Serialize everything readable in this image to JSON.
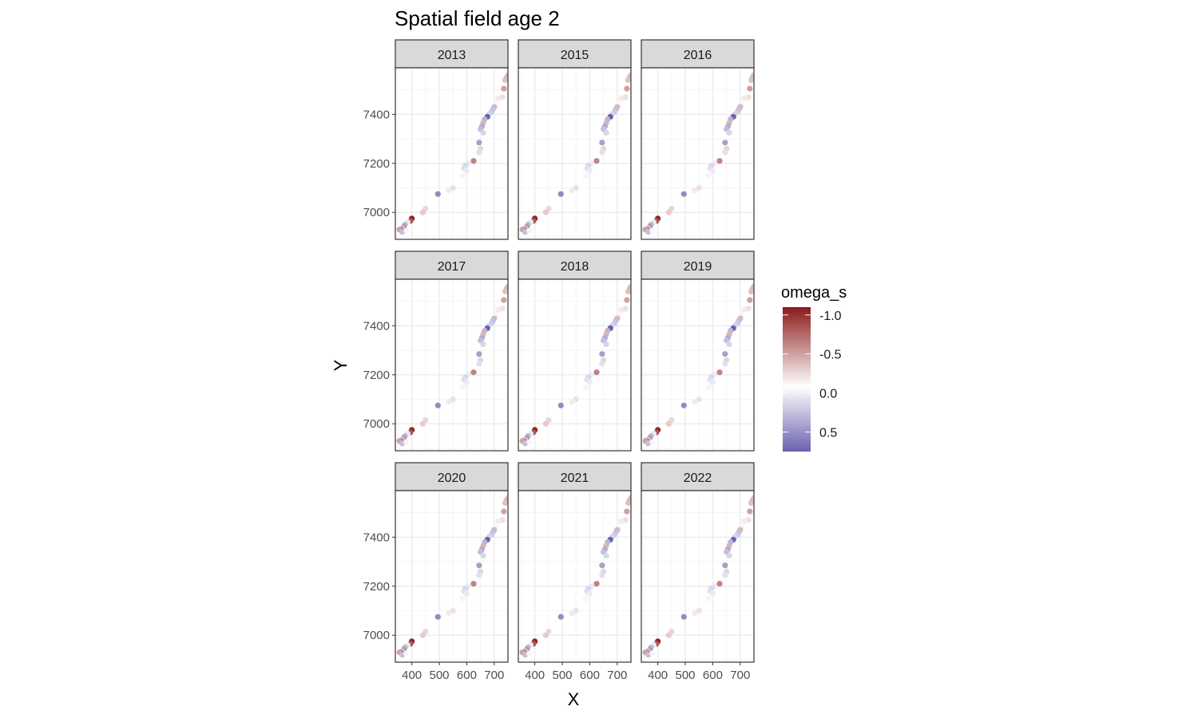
{
  "chart_data": {
    "type": "scatter",
    "title": "Spatial field age 2",
    "xlabel": "X",
    "ylabel": "Y",
    "facets": [
      "2013",
      "2015",
      "2016",
      "2017",
      "2018",
      "2019",
      "2020",
      "2021",
      "2022"
    ],
    "xlim": [
      340,
      750
    ],
    "ylim": [
      6890,
      7590
    ],
    "x_ticks": [
      400,
      500,
      600,
      700
    ],
    "y_ticks": [
      7000,
      7200,
      7400
    ],
    "grid": true,
    "legend": {
      "title": "omega_s",
      "placement": "right",
      "range": [
        -1.1,
        0.75
      ],
      "ticks": [
        -1.0,
        -0.5,
        0.0,
        0.5
      ],
      "tick_labels": [
        "-1.0",
        "-0.5",
        "0.0",
        "0.5"
      ],
      "low_color": "#8B1A1A",
      "mid_color": "#FFFFFF",
      "high_color": "#6A61AD"
    },
    "points": [
      {
        "x": 750,
        "y": 7560,
        "v": -0.3
      },
      {
        "x": 745,
        "y": 7550,
        "v": -0.35
      },
      {
        "x": 740,
        "y": 7540,
        "v": -0.3
      },
      {
        "x": 735,
        "y": 7505,
        "v": -0.45
      },
      {
        "x": 730,
        "y": 7470,
        "v": -0.15
      },
      {
        "x": 715,
        "y": 7465,
        "v": -0.1
      },
      {
        "x": 705,
        "y": 7440,
        "v": -0.05
      },
      {
        "x": 700,
        "y": 7430,
        "v": -0.35
      },
      {
        "x": 695,
        "y": 7420,
        "v": 0.3
      },
      {
        "x": 690,
        "y": 7410,
        "v": 0.25
      },
      {
        "x": 680,
        "y": 7400,
        "v": 0.2
      },
      {
        "x": 675,
        "y": 7390,
        "v": 0.75
      },
      {
        "x": 665,
        "y": 7380,
        "v": 0.35
      },
      {
        "x": 660,
        "y": 7365,
        "v": -0.35
      },
      {
        "x": 655,
        "y": 7350,
        "v": 0.4
      },
      {
        "x": 650,
        "y": 7340,
        "v": 0.3
      },
      {
        "x": 660,
        "y": 7325,
        "v": 0.2
      },
      {
        "x": 645,
        "y": 7285,
        "v": 0.45
      },
      {
        "x": 650,
        "y": 7260,
        "v": -0.2
      },
      {
        "x": 645,
        "y": 7245,
        "v": 0.15
      },
      {
        "x": 625,
        "y": 7210,
        "v": -0.6
      },
      {
        "x": 605,
        "y": 7200,
        "v": 0.1
      },
      {
        "x": 595,
        "y": 7190,
        "v": 0.2
      },
      {
        "x": 590,
        "y": 7180,
        "v": 0.15
      },
      {
        "x": 600,
        "y": 7170,
        "v": 0.1
      },
      {
        "x": 585,
        "y": 7150,
        "v": 0.05
      },
      {
        "x": 550,
        "y": 7100,
        "v": -0.15
      },
      {
        "x": 535,
        "y": 7090,
        "v": -0.1
      },
      {
        "x": 495,
        "y": 7075,
        "v": 0.55
      },
      {
        "x": 450,
        "y": 7015,
        "v": -0.2
      },
      {
        "x": 440,
        "y": 7000,
        "v": -0.25
      },
      {
        "x": 400,
        "y": 6975,
        "v": -1.05
      },
      {
        "x": 395,
        "y": 6965,
        "v": -0.8
      },
      {
        "x": 385,
        "y": 6960,
        "v": 0.1
      },
      {
        "x": 375,
        "y": 6950,
        "v": 0.35
      },
      {
        "x": 370,
        "y": 6940,
        "v": -0.55
      },
      {
        "x": 365,
        "y": 6935,
        "v": 0.25
      },
      {
        "x": 360,
        "y": 6930,
        "v": -0.65
      },
      {
        "x": 355,
        "y": 6930,
        "v": -0.45
      },
      {
        "x": 365,
        "y": 6920,
        "v": 0.3
      },
      {
        "x": 380,
        "y": 6925,
        "v": 0.05
      }
    ]
  }
}
